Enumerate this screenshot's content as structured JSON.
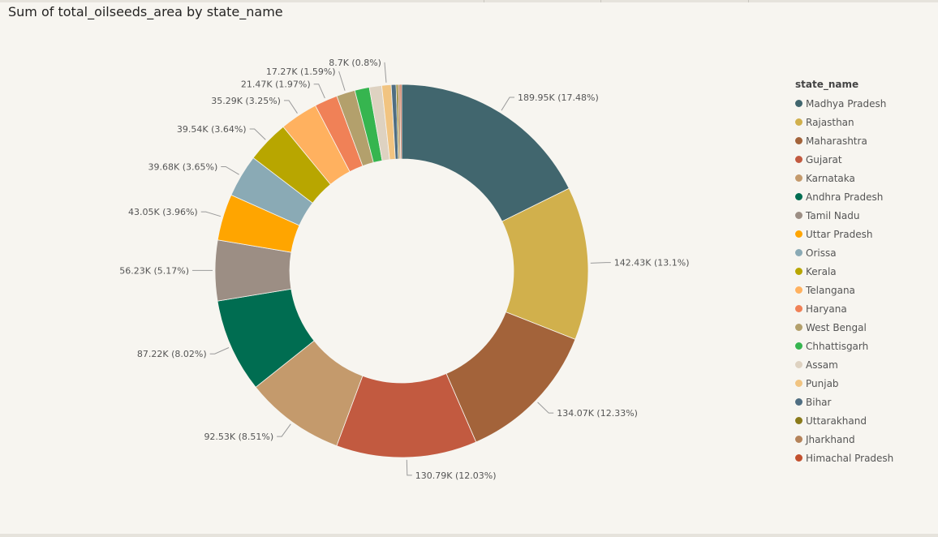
{
  "title": "Sum of total_oilseeds_area by state_name",
  "chart_data": {
    "type": "pie",
    "donut": true,
    "title": "Sum of total_oilseeds_area by state_name",
    "legend_title": "state_name",
    "legend_position": "right",
    "start_angle_deg": 0,
    "direction": "clockwise",
    "slices": [
      {
        "name": "Madhya Pradesh",
        "value": 189.95,
        "label": "189.95K (17.48%)",
        "color": "#41666e"
      },
      {
        "name": "Rajasthan",
        "value": 142.43,
        "label": "142.43K (13.1%)",
        "color": "#d1b04c"
      },
      {
        "name": "Maharashtra",
        "value": 134.07,
        "label": "134.07K (12.33%)",
        "color": "#a3633a"
      },
      {
        "name": "Gujarat",
        "value": 130.79,
        "label": "130.79K (12.03%)",
        "color": "#c25a40"
      },
      {
        "name": "Karnataka",
        "value": 92.53,
        "label": "92.53K (8.51%)",
        "color": "#c49a6c"
      },
      {
        "name": "Andhra Pradesh",
        "value": 87.22,
        "label": "87.22K (8.02%)",
        "color": "#006d51"
      },
      {
        "name": "Tamil Nadu",
        "value": 56.23,
        "label": "56.23K (5.17%)",
        "color": "#9c8e84"
      },
      {
        "name": "Uttar Pradesh",
        "value": 43.05,
        "label": "43.05K (3.96%)",
        "color": "#ffa500"
      },
      {
        "name": "Orissa",
        "value": 39.68,
        "label": "39.68K (3.65%)",
        "color": "#8aaab5"
      },
      {
        "name": "Kerala",
        "value": 39.54,
        "label": "39.54K (3.64%)",
        "color": "#b8a600"
      },
      {
        "name": "Telangana",
        "value": 35.29,
        "label": "35.29K (3.25%)",
        "color": "#ffb15f"
      },
      {
        "name": "Haryana",
        "value": 21.47,
        "label": "21.47K (1.97%)",
        "color": "#f08157"
      },
      {
        "name": "West Bengal",
        "value": 17.27,
        "label": "17.27K (1.59%)",
        "color": "#b3a06c"
      },
      {
        "name": "Chhattisgarh",
        "value": 13.6,
        "label": "",
        "color": "#36b54f"
      },
      {
        "name": "Assam",
        "value": 11.5,
        "label": "",
        "color": "#ded2c1"
      },
      {
        "name": "Punjab",
        "value": 8.7,
        "label": "8.7K (0.8%)",
        "color": "#f1c481"
      },
      {
        "name": "Bihar",
        "value": 4.5,
        "label": "",
        "color": "#4f6e82"
      },
      {
        "name": "Uttarakhand",
        "value": 1.8,
        "label": "",
        "color": "#8a7a1a"
      },
      {
        "name": "Jharkhand",
        "value": 1.8,
        "label": "",
        "color": "#b5835a"
      },
      {
        "name": "Himachal Pradesh",
        "value": 1.5,
        "label": "",
        "color": "#c2502e"
      }
    ]
  }
}
